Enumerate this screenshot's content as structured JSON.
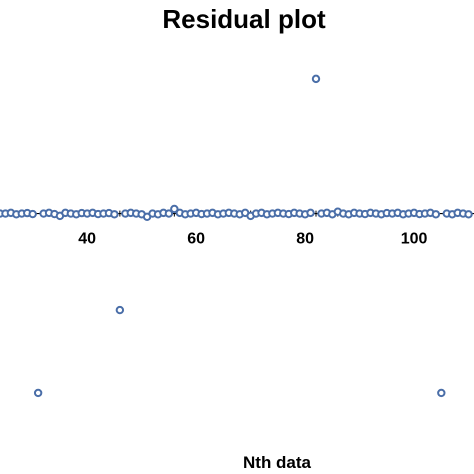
{
  "chart_data": {
    "type": "scatter",
    "title": "Residual plot",
    "xlabel": "Nth data",
    "ylabel": "",
    "xlim": [
      24,
      111
    ],
    "ylim": [
      -1.0,
      0.75
    ],
    "x_ticks": [
      40,
      60,
      80,
      100
    ],
    "grid": false,
    "legend": "none",
    "colors": {
      "marker": "#4a6ea8",
      "axis": "#000000"
    },
    "series": [
      {
        "x": [
          24,
          25,
          26,
          27,
          28,
          29,
          30,
          32,
          33,
          34,
          35,
          36,
          37,
          38,
          39,
          40,
          41,
          42,
          43,
          44,
          45,
          47,
          48,
          49,
          50,
          51,
          52,
          53,
          54,
          55,
          57,
          58,
          59,
          60,
          61,
          62,
          63,
          64,
          65,
          66,
          67,
          68,
          69,
          70,
          71,
          72,
          73,
          74,
          75,
          76,
          77,
          78,
          79,
          80,
          81,
          83,
          84,
          85,
          86,
          87,
          88,
          89,
          90,
          91,
          92,
          93,
          94,
          95,
          96,
          97,
          98,
          99,
          100,
          101,
          102,
          103,
          104,
          106,
          107,
          108,
          109,
          110,
          31,
          46,
          56,
          82,
          105
        ],
        "y": [
          0,
          0,
          0.003,
          -0.003,
          0,
          0.002,
          -0.002,
          0,
          0.003,
          -0.002,
          -0.01,
          0.003,
          0,
          -0.003,
          0.002,
          0,
          0.003,
          -0.002,
          0,
          0.002,
          -0.003,
          0,
          0.003,
          0,
          -0.003,
          -0.014,
          0,
          -0.003,
          0.003,
          0,
          0.003,
          -0.003,
          0,
          0.003,
          -0.002,
          0,
          0.003,
          -0.003,
          0,
          0.003,
          0,
          -0.003,
          0.003,
          -0.01,
          0,
          0.003,
          -0.003,
          0,
          0.003,
          0,
          -0.002,
          0.003,
          0,
          -0.003,
          0.003,
          0,
          0.003,
          -0.003,
          0.008,
          0,
          -0.003,
          0.003,
          0,
          -0.002,
          0.003,
          0,
          -0.003,
          0.002,
          0,
          0.003,
          -0.003,
          0,
          0.003,
          -0.002,
          0,
          0.003,
          -0.003,
          0,
          -0.003,
          0.003,
          0,
          -0.003,
          -0.775,
          -0.417,
          0.02,
          0.582,
          -0.775
        ]
      }
    ]
  }
}
